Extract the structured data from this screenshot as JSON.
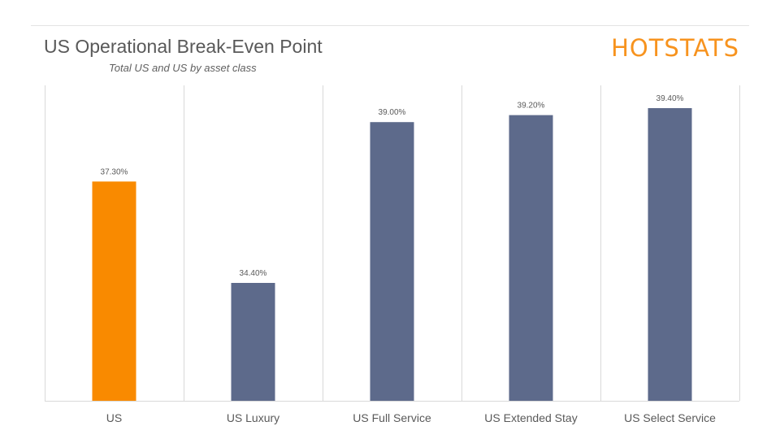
{
  "header": {
    "title": "US Operational Break-Even Point",
    "subtitle": "Total US and US by asset class",
    "logo_text": "HOTSTATS"
  },
  "colors": {
    "highlight": "#f98a00",
    "bar": "#5d6a8b",
    "divider": "#d9d9d9",
    "label": "#595959",
    "logo": "#f7931e"
  },
  "chart_data": {
    "type": "bar",
    "title": "US Operational Break-Even Point",
    "subtitle": "Total US and US by asset class",
    "categories": [
      "US",
      "US Luxury",
      "US Full Service",
      "US Extended Stay",
      "US Select Service"
    ],
    "values": [
      37.3,
      34.4,
      39.0,
      39.2,
      39.4
    ],
    "data_labels": [
      "37.30%",
      "34.40%",
      "39.00%",
      "39.20%",
      "39.40%"
    ],
    "highlight_index": 0,
    "unit": "%",
    "grid": false,
    "legend": "none"
  }
}
